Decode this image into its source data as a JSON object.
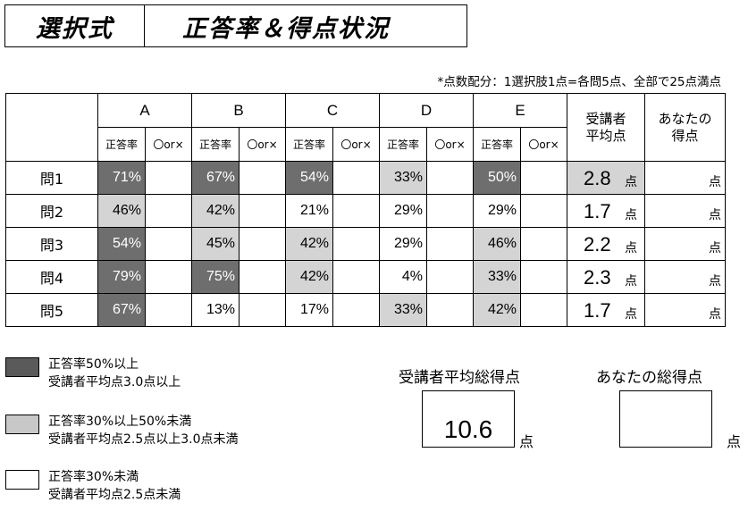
{
  "title": {
    "left": "選択式",
    "right": "正答率＆得点状況"
  },
  "note": "*点数配分：1選択肢1点=各問5点、全部で25点満点",
  "table": {
    "choices": [
      "A",
      "B",
      "C",
      "D",
      "E"
    ],
    "sub_rate": "正答率",
    "sub_ox": "〇or×",
    "avg_header": [
      "受講者",
      "平均点"
    ],
    "you_header": [
      "あなたの",
      "得点"
    ],
    "unit": "点",
    "rows": [
      {
        "label": "問1",
        "rates": [
          "71%",
          "67%",
          "54%",
          "33%",
          "50%"
        ],
        "levels": [
          "dark",
          "dark",
          "dark",
          "light",
          "dark"
        ],
        "avg": "2.8",
        "avg_level": "light"
      },
      {
        "label": "問2",
        "rates": [
          "46%",
          "42%",
          "21%",
          "29%",
          "29%"
        ],
        "levels": [
          "light",
          "light",
          "none",
          "none",
          "none"
        ],
        "avg": "1.7",
        "avg_level": "none"
      },
      {
        "label": "問3",
        "rates": [
          "54%",
          "45%",
          "42%",
          "29%",
          "46%"
        ],
        "levels": [
          "dark",
          "light",
          "light",
          "none",
          "light"
        ],
        "avg": "2.2",
        "avg_level": "none"
      },
      {
        "label": "問4",
        "rates": [
          "79%",
          "75%",
          "42%",
          "4%",
          "33%"
        ],
        "levels": [
          "dark",
          "dark",
          "light",
          "none",
          "light"
        ],
        "avg": "2.3",
        "avg_level": "none"
      },
      {
        "label": "問5",
        "rates": [
          "67%",
          "13%",
          "17%",
          "33%",
          "42%"
        ],
        "levels": [
          "dark",
          "none",
          "none",
          "light",
          "light"
        ],
        "avg": "1.7",
        "avg_level": "none"
      }
    ]
  },
  "legend": [
    {
      "level": "dark",
      "line1": "正答率50%以上",
      "line2": "受講者平均点3.0点以上"
    },
    {
      "level": "light",
      "line1": "正答率30%以上50%未満",
      "line2": "受講者平均点2.5点以上3.0点未満"
    },
    {
      "level": "none",
      "line1": "正答率30%未満",
      "line2": "受講者平均点2.5点未満"
    }
  ],
  "totals": {
    "avg_label": "受講者平均総得点",
    "avg_value": "10.6",
    "you_label": "あなたの総得点",
    "you_value": "",
    "unit": "点"
  },
  "colors": {
    "dark": "#6e6e6e",
    "light": "#d4d4d4",
    "none": "#ffffff"
  }
}
